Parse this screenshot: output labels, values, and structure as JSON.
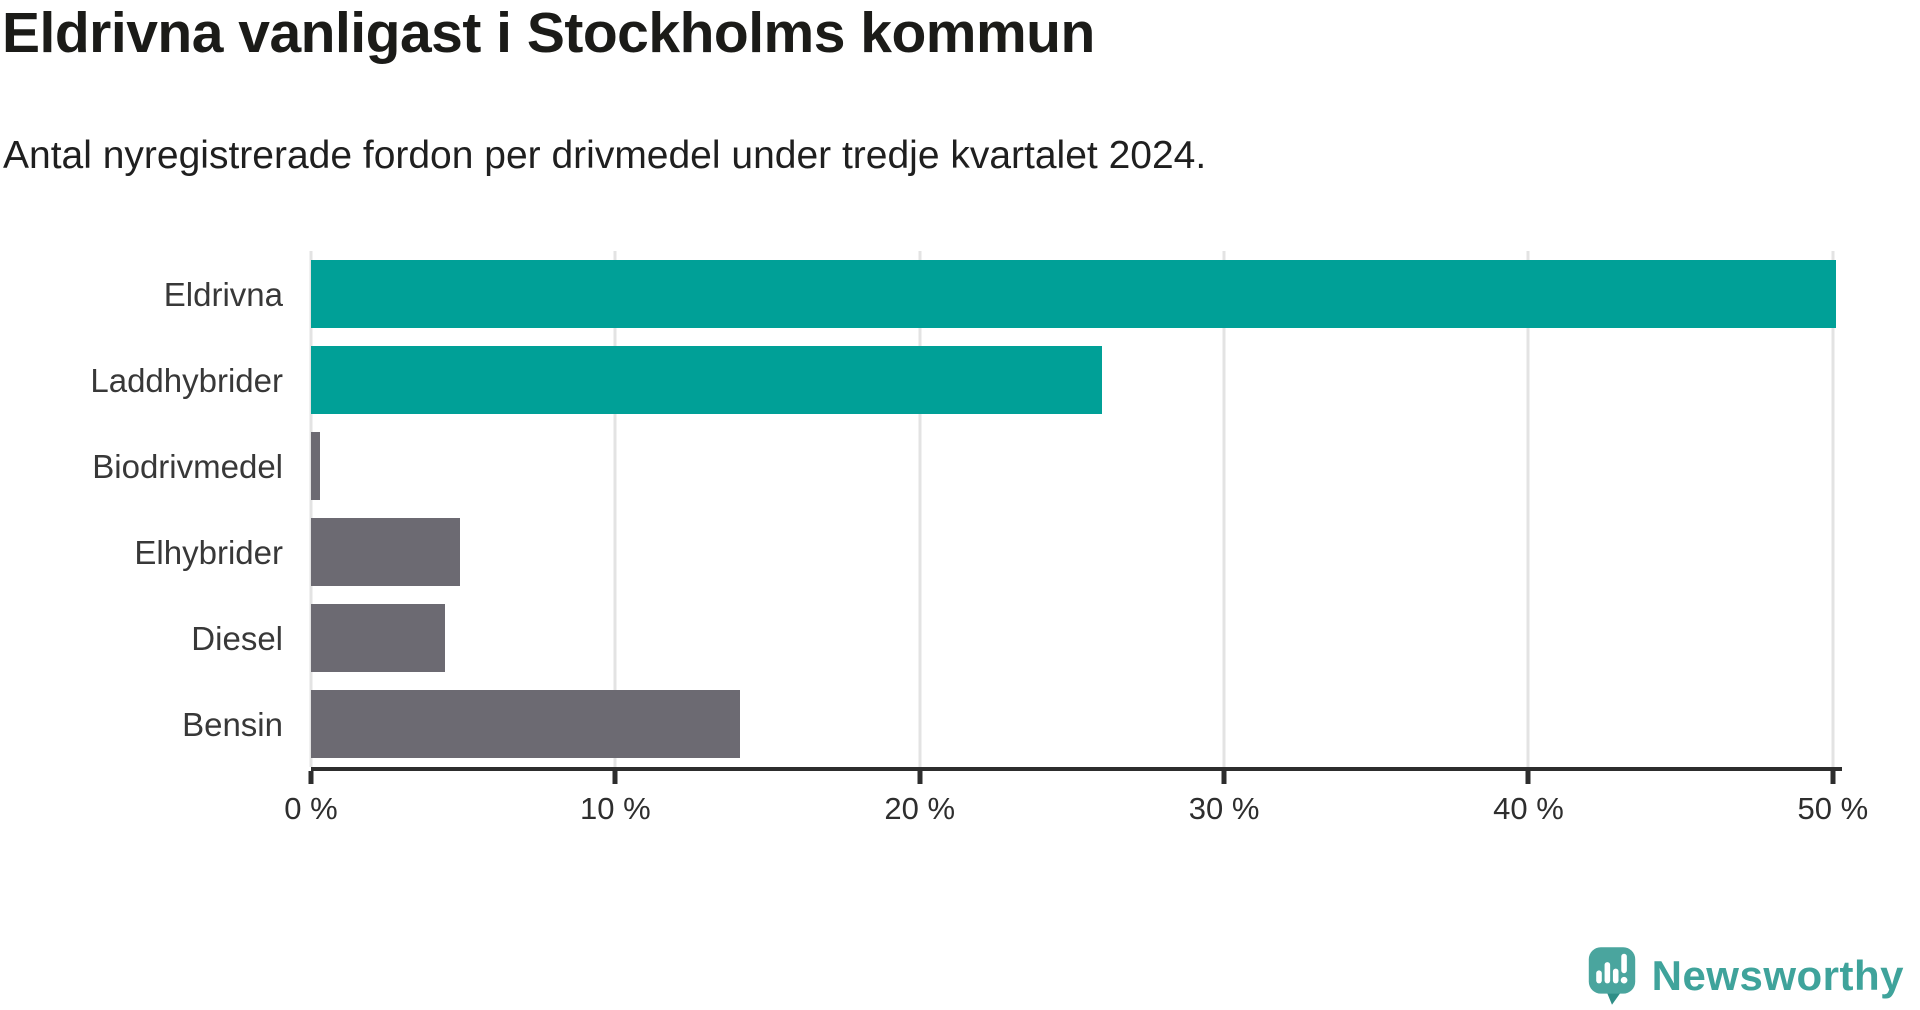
{
  "header": {
    "title": "Eldrivna vanligast i Stockholms kommun",
    "subtitle": "Antal nyregistrerade fordon per drivmedel under tredje kvartalet 2024."
  },
  "chart_data": {
    "type": "bar",
    "orientation": "horizontal",
    "title": "Eldrivna vanligast i Stockholms kommun",
    "subtitle": "Antal nyregistrerade fordon per drivmedel under tredje kvartalet 2024.",
    "categories": [
      "Eldrivna",
      "Laddhybrider",
      "Biodrivmedel",
      "Elhybrider",
      "Diesel",
      "Bensin"
    ],
    "values": [
      50.1,
      26.0,
      0.3,
      4.9,
      4.4,
      14.1
    ],
    "unit": "%",
    "xlabel": "",
    "ylabel": "",
    "xlim": [
      0,
      50.3
    ],
    "xticks": [
      0,
      10,
      20,
      30,
      40,
      50
    ],
    "xtick_labels": [
      "0 %",
      "10 %",
      "20 %",
      "30 %",
      "40 %",
      "50 %"
    ],
    "grid": true,
    "legend": "none",
    "bar_colors": [
      "#00a097",
      "#00a097",
      "#6c6a72",
      "#6c6a72",
      "#6c6a72",
      "#6c6a72"
    ],
    "highlight_color": "#00a097",
    "default_color": "#6c6a72",
    "gridline_color": "#e3e3e3",
    "axis_color": "#2d2d2d"
  },
  "footer": {
    "brand": "Newsworthy",
    "logo_icon": "newsworthy-pin-barchart-icon",
    "brand_color": "#3fa39b"
  }
}
